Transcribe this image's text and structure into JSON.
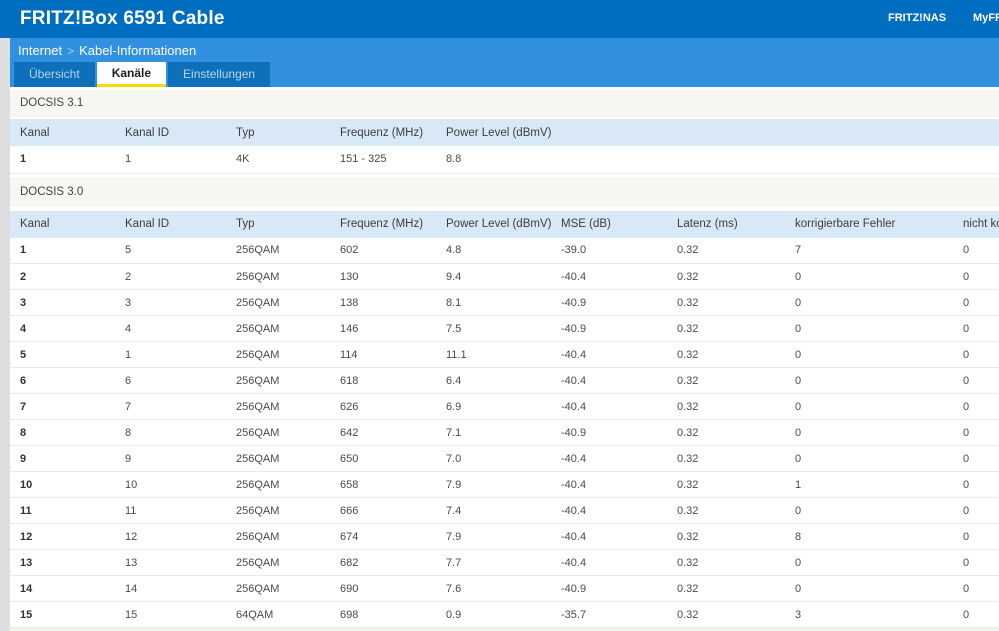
{
  "header": {
    "title": "FRITZ!Box 6591 Cable",
    "links": {
      "fritznas": "FRITZ!NAS",
      "myfritz": "MyFRITZ!"
    }
  },
  "breadcrumb": {
    "section": "Internet",
    "separator": ">",
    "page": "Kabel-Informationen"
  },
  "tabs": [
    {
      "label": "Übersicht",
      "name": "tab-uebersicht",
      "active": false
    },
    {
      "label": "Kanäle",
      "name": "tab-kanaele",
      "active": true
    },
    {
      "label": "Einstellungen",
      "name": "tab-einstellungen",
      "active": false
    }
  ],
  "docsis31": {
    "section_title": "DOCSIS 3.1",
    "columns": [
      "Kanal",
      "Kanal ID",
      "Typ",
      "Frequenz (MHz)",
      "Power Level (dBmV)"
    ],
    "rows": [
      [
        "1",
        "1",
        "4K",
        "151 - 325",
        "8.8"
      ]
    ]
  },
  "docsis30": {
    "section_title": "DOCSIS 3.0",
    "columns": [
      "Kanal",
      "Kanal ID",
      "Typ",
      "Frequenz (MHz)",
      "Power Level (dBmV)",
      "MSE (dB)",
      "Latenz (ms)",
      "korrigierbare Fehler",
      "nicht korrigierbare Fehler"
    ],
    "rows": [
      [
        "1",
        "5",
        "256QAM",
        "602",
        "4.8",
        "-39.0",
        "0.32",
        "7",
        "0"
      ],
      [
        "2",
        "2",
        "256QAM",
        "130",
        "9.4",
        "-40.4",
        "0.32",
        "0",
        "0"
      ],
      [
        "3",
        "3",
        "256QAM",
        "138",
        "8.1",
        "-40.9",
        "0.32",
        "0",
        "0"
      ],
      [
        "4",
        "4",
        "256QAM",
        "146",
        "7.5",
        "-40.9",
        "0.32",
        "0",
        "0"
      ],
      [
        "5",
        "1",
        "256QAM",
        "114",
        "11.1",
        "-40.4",
        "0.32",
        "0",
        "0"
      ],
      [
        "6",
        "6",
        "256QAM",
        "618",
        "6.4",
        "-40.4",
        "0.32",
        "0",
        "0"
      ],
      [
        "7",
        "7",
        "256QAM",
        "626",
        "6.9",
        "-40.4",
        "0.32",
        "0",
        "0"
      ],
      [
        "8",
        "8",
        "256QAM",
        "642",
        "7.1",
        "-40.9",
        "0.32",
        "0",
        "0"
      ],
      [
        "9",
        "9",
        "256QAM",
        "650",
        "7.0",
        "-40.4",
        "0.32",
        "0",
        "0"
      ],
      [
        "10",
        "10",
        "256QAM",
        "658",
        "7.9",
        "-40.4",
        "0.32",
        "1",
        "0"
      ],
      [
        "11",
        "11",
        "256QAM",
        "666",
        "7.4",
        "-40.4",
        "0.32",
        "0",
        "0"
      ],
      [
        "12",
        "12",
        "256QAM",
        "674",
        "7.9",
        "-40.4",
        "0.32",
        "8",
        "0"
      ],
      [
        "13",
        "13",
        "256QAM",
        "682",
        "7.7",
        "-40.4",
        "0.32",
        "0",
        "0"
      ],
      [
        "14",
        "14",
        "256QAM",
        "690",
        "7.6",
        "-40.9",
        "0.32",
        "0",
        "0"
      ],
      [
        "15",
        "15",
        "64QAM",
        "698",
        "0.9",
        "-35.7",
        "0.32",
        "3",
        "0"
      ]
    ]
  },
  "colors": {
    "header_bg": "#006ec0",
    "nav_bg": "#3191e0",
    "inactive_tab_bg": "#0f70ba",
    "active_tab_underline": "#f8dc00",
    "table_header_bg": "#d9e8f6",
    "section_band_bg": "#f6f6f3"
  }
}
